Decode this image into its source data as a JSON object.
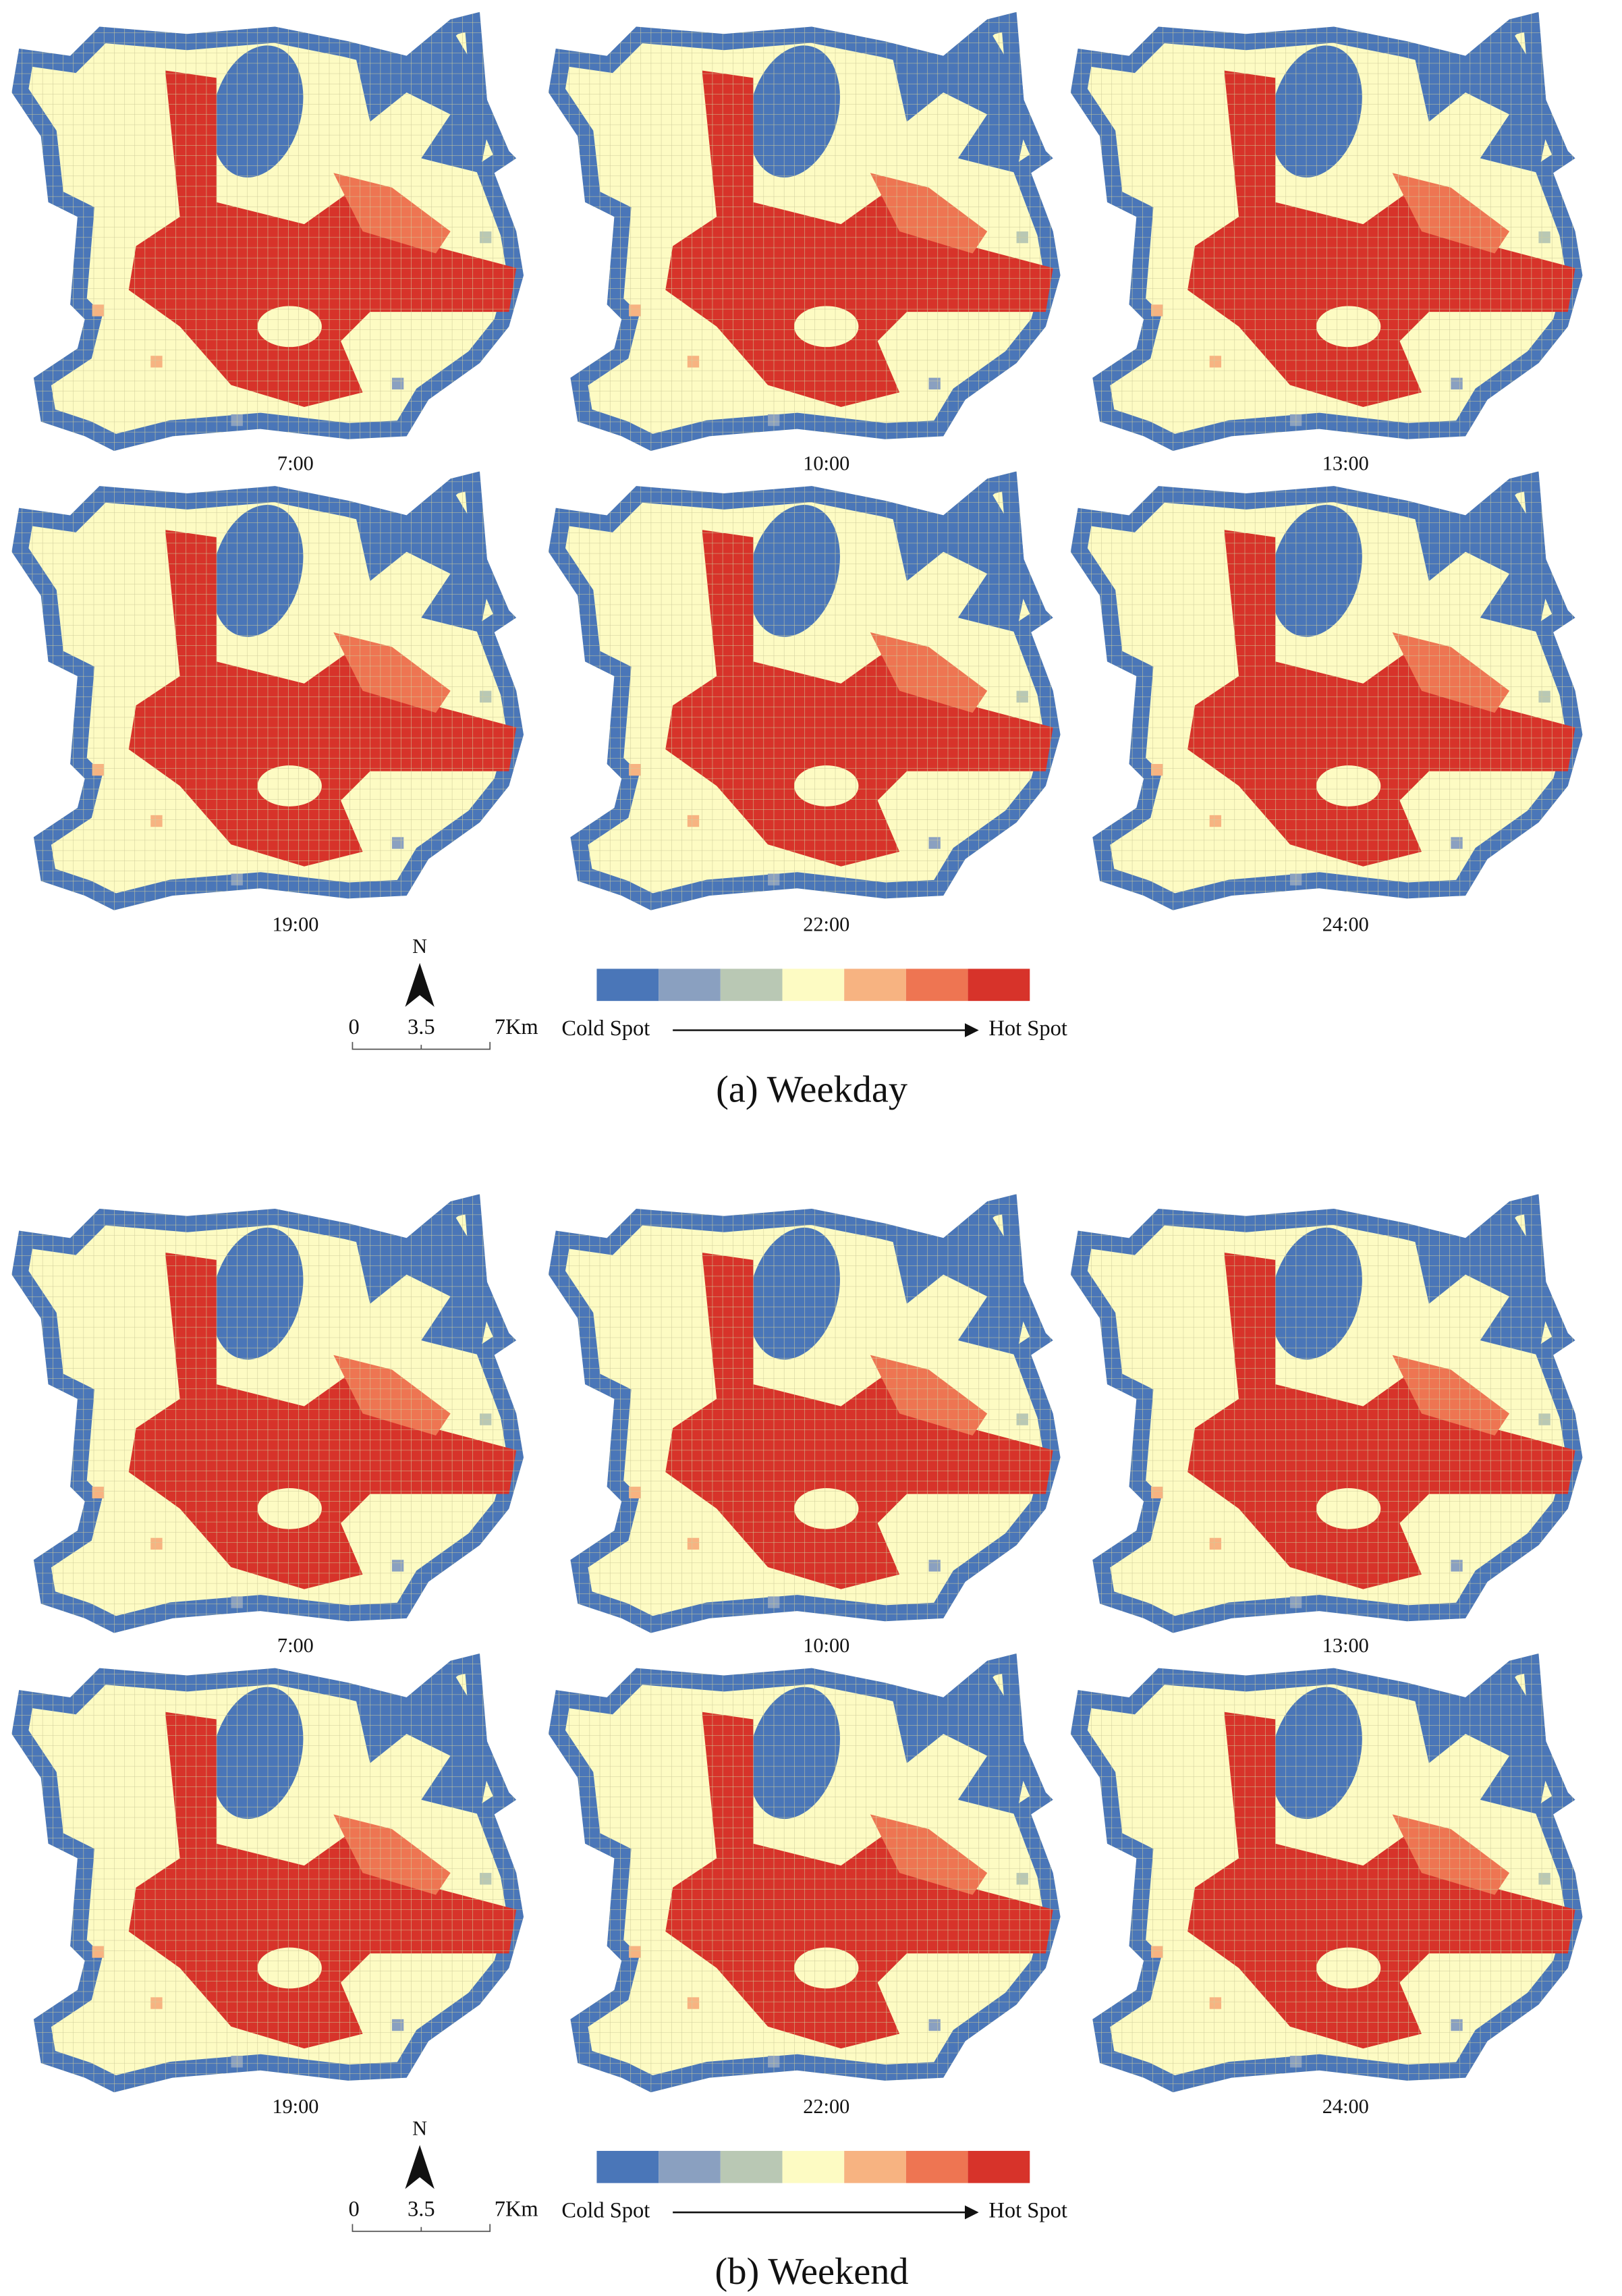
{
  "colors": [
    "#4a76b8",
    "#8aa0c0",
    "#b9c8b4",
    "#fdfbc3",
    "#f7b381",
    "#ee7552",
    "#d7332a"
  ],
  "panels": [
    {
      "caption": "(a) Weekday",
      "maps": [
        {
          "label": "7:00"
        },
        {
          "label": "10:00"
        },
        {
          "label": "13:00"
        },
        {
          "label": "19:00"
        },
        {
          "label": "22:00"
        },
        {
          "label": "24:00"
        }
      ],
      "legend": {
        "cold": "Cold Spot",
        "hot": "Hot Spot"
      },
      "scale": {
        "north": "N",
        "ticks": [
          "0",
          "3.5",
          "7Km"
        ]
      }
    },
    {
      "caption": "(b) Weekend",
      "maps": [
        {
          "label": "7:00"
        },
        {
          "label": "10:00"
        },
        {
          "label": "13:00"
        },
        {
          "label": "19:00"
        },
        {
          "label": "22:00"
        },
        {
          "label": "24:00"
        }
      ],
      "legend": {
        "cold": "Cold Spot",
        "hot": "Hot Spot"
      },
      "scale": {
        "north": "N",
        "ticks": [
          "0",
          "3.5",
          "7Km"
        ]
      }
    }
  ]
}
